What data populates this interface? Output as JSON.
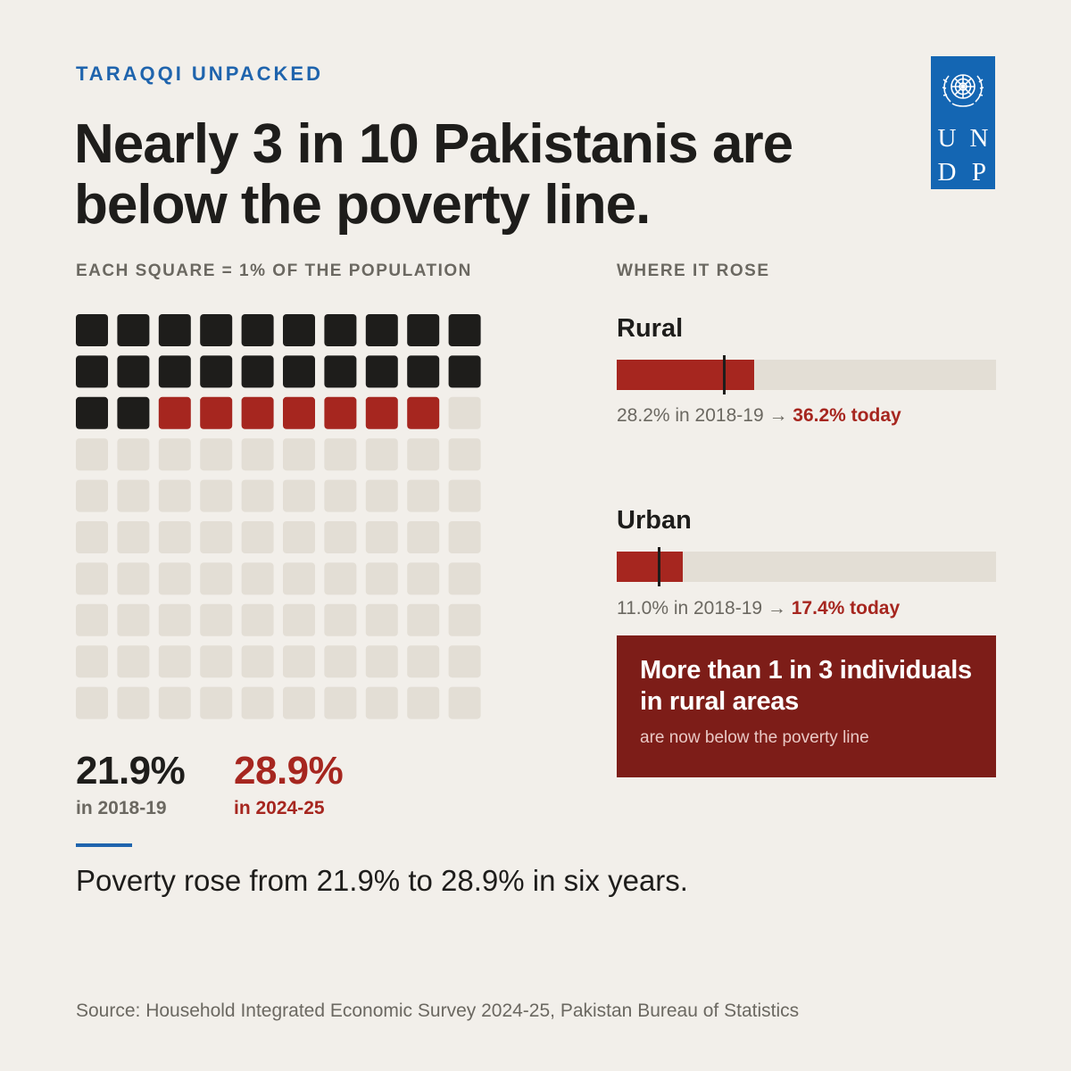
{
  "kicker": "TARAQQI UNPACKED",
  "headline": "Nearly 3 in 10 Pakistanis are below the poverty line.",
  "logo": {
    "letters": [
      "U",
      "N",
      "D",
      "P"
    ],
    "emblem": "un-emblem-icon"
  },
  "colors": {
    "background": "#f2efea",
    "previous": "#1e1d1b",
    "increase": "#a6261f",
    "empty": "#e3ded5",
    "accent": "#1f64ad",
    "callout": "#7d1d18"
  },
  "waffle": {
    "label": "EACH SQUARE = 1% OF THE POPULATION",
    "stat_2018": {
      "value": "21.9%",
      "period": "in 2018-19"
    },
    "stat_2024": {
      "value": "28.9%",
      "period": "in 2024-25"
    }
  },
  "where_label": "WHERE IT ROSE",
  "rural": {
    "name": "Rural",
    "caption_before": "28.2% in 2018-19 → ",
    "caption_after": "36.2% today"
  },
  "urban": {
    "name": "Urban",
    "caption_before": "11.0% in 2018-19 → ",
    "caption_after": "17.4% today"
  },
  "callout": {
    "headline": "More than 1 in 3 individuals in rural areas",
    "sub": "are now below the poverty line"
  },
  "summary": "Poverty rose from 21.9% to 28.9% in six years.",
  "source": "Source: Household Integrated Economic Survey 2024-25, Pakistan Bureau of Statistics",
  "chart_data": [
    {
      "type": "waffle",
      "unit": "1% of the population",
      "grid": [
        10,
        10
      ],
      "series": [
        {
          "name": "in 2018-19",
          "value": 21.9,
          "squares": 22
        },
        {
          "name": "in 2024-25",
          "value": 28.9,
          "squares": 29
        }
      ]
    },
    {
      "type": "bar",
      "orientation": "horizontal",
      "xlim": [
        0,
        100
      ],
      "categories": [
        "Rural",
        "Urban"
      ],
      "series": [
        {
          "name": "2018-19",
          "values": [
            28.2,
            11.0
          ]
        },
        {
          "name": "today",
          "values": [
            36.2,
            17.4
          ]
        }
      ]
    }
  ]
}
